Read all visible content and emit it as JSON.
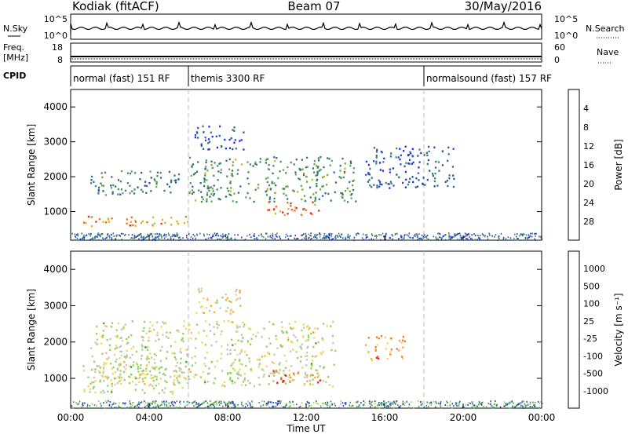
{
  "header": {
    "station": "Kodiak (fitACF)",
    "beam": "Beam 07",
    "date": "30/May/2016"
  },
  "top_panels": {
    "nsky": {
      "label": "N.Sky",
      "right_label": "N.Search",
      "ticks_left": [
        "10^5",
        "10^0"
      ],
      "ticks_right": [
        "10^5",
        "10^0"
      ]
    },
    "freq": {
      "label_line1": "Freq.",
      "label_line2": "[MHz]",
      "right_label": "Nave",
      "ticks_left": [
        "18",
        "8"
      ],
      "ticks_right": [
        "60",
        "0"
      ]
    },
    "cpid": {
      "label": "CPID",
      "segments": [
        {
          "label": "normal (fast) 151 RF",
          "start_hour": 0,
          "end_hour": 6
        },
        {
          "label": "themis 3300 RF",
          "start_hour": 6,
          "end_hour": 18
        },
        {
          "label": "normalsound (fast) 157 RF",
          "start_hour": 18,
          "end_hour": 24
        }
      ]
    }
  },
  "chart_data": [
    {
      "type": "heatmap",
      "name": "power",
      "ylabel": "Slant Range [km]",
      "yticks": [
        "1000",
        "2000",
        "3000",
        "4000"
      ],
      "ylim": [
        180,
        4500
      ],
      "xlim": [
        0,
        24
      ],
      "colorbar_label": "Power [dB]",
      "colorbar_ticks": [
        "4",
        "8",
        "12",
        "16",
        "20",
        "24",
        "28"
      ],
      "colormap": [
        "#1f2ae8",
        "#2a4fa8",
        "#2f6f8a",
        "#3f8f5f",
        "#6aab3f",
        "#c8b81c",
        "#f5a51a",
        "#ef6a18",
        "#e02a14"
      ],
      "regions": [
        {
          "t0": 0.6,
          "t1": 6.0,
          "r0": 600,
          "r1": 900,
          "level": 0.75
        },
        {
          "t0": 1.0,
          "t1": 5.5,
          "r0": 1500,
          "r1": 2200,
          "level": 0.35
        },
        {
          "t0": 6.0,
          "t1": 14.5,
          "r0": 1300,
          "r1": 2600,
          "level": 0.4
        },
        {
          "t0": 10.0,
          "t1": 12.8,
          "r0": 900,
          "r1": 1300,
          "level": 0.85
        },
        {
          "t0": 15.0,
          "t1": 19.5,
          "r0": 1700,
          "r1": 2900,
          "level": 0.2
        },
        {
          "t0": 6.3,
          "t1": 8.8,
          "r0": 2800,
          "r1": 3500,
          "level": 0.15
        }
      ]
    },
    {
      "type": "heatmap",
      "name": "velocity",
      "ylabel": "Slant Range [km]",
      "yticks": [
        "1000",
        "2000",
        "3000",
        "4000"
      ],
      "ylim": [
        180,
        4500
      ],
      "xlim": [
        0,
        24
      ],
      "xlabel": "Time UT",
      "xticks": [
        "00:00",
        "04:00",
        "08:00",
        "12:00",
        "16:00",
        "20:00",
        "00:00"
      ],
      "colorbar_label": "Velocity [m s⁻¹]",
      "colorbar_ticks": [
        "1000",
        "500",
        "100",
        "25",
        "-25",
        "-100",
        "-500",
        "-1000"
      ],
      "colormap": [
        "#2a38c8",
        "#2c7a8f",
        "#3a9a3a",
        "#8fd45a",
        "#c2c2b8",
        "#f7d35a",
        "#f5a531",
        "#ef7a1f",
        "#e0201a"
      ],
      "regions": [
        {
          "t0": 0.6,
          "t1": 6.0,
          "r0": 600,
          "r1": 1400,
          "level": 0.5
        },
        {
          "t0": 1.0,
          "t1": 13.5,
          "r0": 800,
          "r1": 2600,
          "level": 0.5
        },
        {
          "t0": 10.0,
          "t1": 12.8,
          "r0": 900,
          "r1": 1300,
          "level": 0.8
        },
        {
          "t0": 15.0,
          "t1": 17.0,
          "r0": 1500,
          "r1": 2200,
          "level": 0.75
        },
        {
          "t0": 6.3,
          "t1": 8.8,
          "r0": 2800,
          "r1": 3500,
          "level": 0.6
        }
      ]
    }
  ]
}
